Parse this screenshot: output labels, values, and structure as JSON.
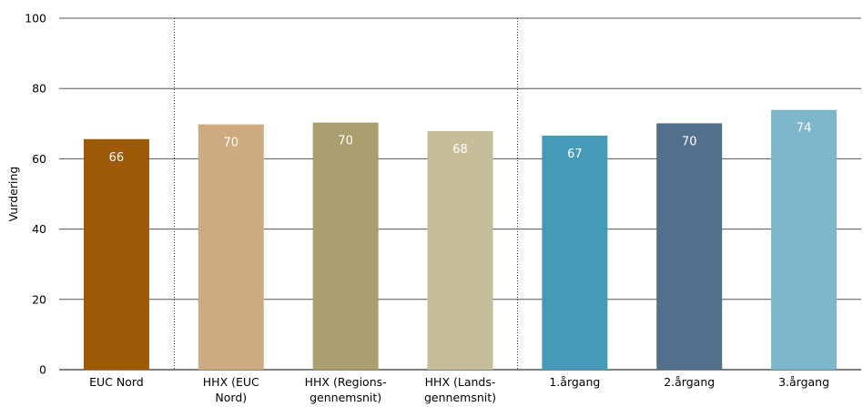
{
  "chart_data": {
    "type": "bar",
    "title": "",
    "xlabel": "",
    "ylabel": "Vurdering",
    "ylim": [
      0,
      100
    ],
    "yticks": [
      0,
      20,
      40,
      60,
      80,
      100
    ],
    "grid": true,
    "categories": [
      [
        "EUC Nord"
      ],
      [
        "HHX (EUC",
        "Nord)"
      ],
      [
        "HHX (Regions-",
        "gennemsnit)"
      ],
      [
        "HHX (Lands-",
        "gennemsnit)"
      ],
      [
        "1.årgang"
      ],
      [
        "2.årgang"
      ],
      [
        "3.årgang"
      ]
    ],
    "values": [
      65.6,
      69.8,
      70.3,
      67.9,
      66.6,
      70.1,
      73.9
    ],
    "data_labels": [
      "66",
      "70",
      "70",
      "68",
      "67",
      "70",
      "74"
    ],
    "colors": [
      "#9c5a07",
      "#cdaa80",
      "#ab9e6e",
      "#c6bd9a",
      "#459bb7",
      "#526f8b",
      "#7eb7cb"
    ],
    "group_separators_after": [
      0,
      3
    ]
  }
}
